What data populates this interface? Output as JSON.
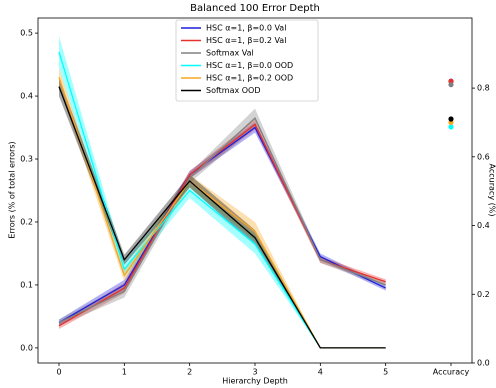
{
  "chart_data": {
    "type": "line",
    "title": "Balanced 100 Error Depth",
    "xlabel": "Hierarchy Depth",
    "ylabel": "Errors (% of total errors)",
    "y2label": "Accuracy (%)",
    "categories": [
      "0",
      "1",
      "2",
      "3",
      "4",
      "5",
      "Accuracy"
    ],
    "ylim": [
      -0.024,
      0.524
    ],
    "yticks": [
      {
        "value": 0,
        "label": "0.0"
      },
      0.1,
      0.2,
      0.3,
      0.4,
      0.5
    ],
    "y2lim": [
      0,
      1.004
    ],
    "y2ticks": [
      {
        "value": 0,
        "label": "0.0"
      },
      0.2,
      0.4,
      0.6,
      0.8
    ],
    "legend": "upper center",
    "series": [
      {
        "name": "HSC α=1, β=0.0 Val",
        "color": "#1f1fdd",
        "values": [
          0.04,
          0.1,
          0.275,
          0.35,
          0.145,
          0.095,
          null
        ],
        "errors": [
          0.005,
          0.008,
          0.006,
          0.008,
          0.005,
          0.004,
          null
        ],
        "accuracy": 0.82
      },
      {
        "name": "HSC α=1, β=0.2 Val",
        "color": "#e8302c",
        "values": [
          0.035,
          0.095,
          0.275,
          0.355,
          0.14,
          0.105,
          null
        ],
        "errors": [
          0.005,
          0.008,
          0.006,
          0.008,
          0.005,
          0.004,
          null
        ],
        "accuracy": 0.82
      },
      {
        "name": "Softmax Val",
        "color": "#808080",
        "values": [
          0.04,
          0.09,
          0.27,
          0.365,
          0.14,
          0.1,
          null
        ],
        "errors": [
          0.005,
          0.01,
          0.008,
          0.015,
          0.005,
          0.004,
          null
        ],
        "accuracy": 0.81
      },
      {
        "name": "HSC α=1, β=0.0 OOD",
        "color": "#00ffff",
        "values": [
          0.47,
          0.125,
          0.25,
          0.165,
          0,
          0,
          null
        ],
        "errors": [
          0.025,
          0.012,
          0.012,
          0.015,
          0,
          0,
          null
        ],
        "accuracy": 0.687
      },
      {
        "name": "HSC α=1, β=0.2 OOD",
        "color": "#f5a623",
        "values": [
          0.43,
          0.115,
          0.265,
          0.185,
          0,
          0,
          null
        ],
        "errors": [
          0.015,
          0.01,
          0.01,
          0.015,
          0,
          0,
          null
        ],
        "accuracy": 0.7
      },
      {
        "name": "Softmax OOD",
        "color": "#000000",
        "values": [
          0.415,
          0.14,
          0.265,
          0.175,
          0,
          0,
          null
        ],
        "errors": [
          0.015,
          0.008,
          0.01,
          0.012,
          0,
          0,
          null
        ],
        "accuracy": 0.71
      }
    ]
  }
}
